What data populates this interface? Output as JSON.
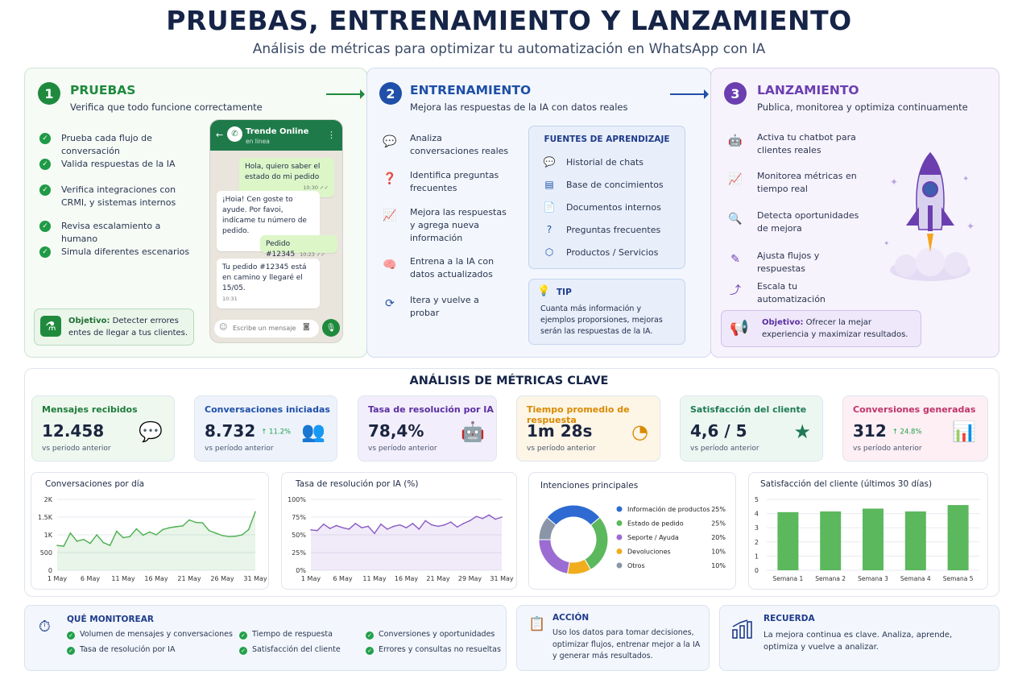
{
  "header": {
    "title": "PRUEBAS, ENTRENAMIENTO Y LANZAMIENTO",
    "subtitle": "Análisis de métricas para optimizar tu automatización en WhatsApp con IA"
  },
  "colors": {
    "green": "#1f8a3d",
    "blue": "#1f4fa8",
    "purple": "#6b3fb0"
  },
  "pruebas": {
    "number": "1",
    "title": "PRUEBAS",
    "subtitle": "Verifica que todo funcione correctamente",
    "items": [
      "Prueba cada flujo de conversación",
      "Valida respuestas de la IA",
      "Verifica integraciones con CRMI, y sistemas internos",
      "Revisa escalamiento a humano",
      "Simula diferentes escenarios"
    ],
    "objective_label": "Objetivo:",
    "objective_text": "Detecter errores entes de llegar a tus clientes."
  },
  "phone": {
    "name": "Trende Online",
    "status": "en linea",
    "messages": [
      {
        "text": "Hola, quiero saber el estado do mi pedido",
        "time": "10:30 ✓✓",
        "me": true
      },
      {
        "text": "¡Hoia! Cen goste to ayude. Por favoi, indícame tu número de pedido.",
        "time": "10:36",
        "me": false
      },
      {
        "text": "Pedido #12345",
        "time": "10:23 ✓✓",
        "me": true
      },
      {
        "text": "Tu pedido #12345 está en camino y llegaré el 15/05.",
        "time": "10:31",
        "me": false
      }
    ],
    "input_placeholder": "Escribe un mensaje"
  },
  "entrenamiento": {
    "number": "2",
    "title": "ENTRENAMIENTO",
    "subtitle": "Mejora las respuestas de la IA con datos reales",
    "items": [
      "Analiza conversaciones reales",
      "Identifica preguntas frecuentes",
      "Mejora las respuestas y agrega nueva información",
      "Entrena a la IA con datos actualizados",
      "Itera y vuelve a probar"
    ],
    "sources_title": "FUENTES DE APRENDIZAJE",
    "sources": [
      "Historial de chats",
      "Base de concimientos",
      "Documentos internos",
      "Preguntas frecuentes",
      "Productos / Servicios"
    ],
    "tip_title": "TIP",
    "tip_text": "Cuanta más información y ejemplos proporsiones, mejoras serán las respuestas de la IA."
  },
  "lanzamiento": {
    "number": "3",
    "title": "LANZAMIENTO",
    "subtitle": "Publica, monitorea y optimiza continuamente",
    "items": [
      "Activa tu chatbot para clientes reales",
      "Monitorea métricas en tiempo real",
      "Detecta oportunidades de mejora",
      "Ajusta flujos y respuestas",
      "Escala tu automatización"
    ],
    "objective_label": "Objetivo:",
    "objective_text": "Ofrecer la mejar experiencia y maximizar resultados."
  },
  "metrics_title": "ANÁLISIS DE MÉTRICAS CLAVE",
  "kpis": [
    {
      "title": "Mensajes recibidos",
      "value": "12.458",
      "delta": "",
      "sub": "vs periodo anterior",
      "color": "#1f7a3a",
      "bg": "#eef8ef"
    },
    {
      "title": "Conversaciones iniciadas",
      "value": "8.732",
      "delta": "↑ 11.2%",
      "sub": "vs período anterior",
      "color": "#1f4fa8",
      "bg": "#eef3fb"
    },
    {
      "title": "Tasa de resolución por IA",
      "value": "78,4%",
      "delta": "",
      "sub": "vs período anterior",
      "color": "#5a2fa0",
      "bg": "#f3eefb"
    },
    {
      "title": "Tiempo promedio de respuesta",
      "value": "1m 28s",
      "delta": "",
      "sub": "vs período anterior",
      "color": "#d98a00",
      "bg": "#fdf5e6"
    },
    {
      "title": "Satisfacción del cliente",
      "value": "4,6 / 5",
      "delta": "",
      "sub": "vs período anterior",
      "color": "#1f7a55",
      "bg": "#edf7f2"
    },
    {
      "title": "Conversiones generadas",
      "value": "312",
      "delta": "↑ 24.8%",
      "sub": "vs período anterior",
      "color": "#c0336a",
      "bg": "#fdeff4"
    }
  ],
  "chart_data": [
    {
      "type": "area",
      "title": "Conversaciones por día",
      "x": [
        "1 May",
        "2 May",
        "3 May",
        "4 May",
        "5 May",
        "6 May",
        "7 May",
        "8 May",
        "9 May",
        "10 May",
        "11 May",
        "12 May",
        "13 May",
        "14 May",
        "15 May",
        "16 May",
        "17 May",
        "18 May",
        "19 May",
        "20 May",
        "21 May",
        "22 May",
        "23 May",
        "24 May",
        "25 May",
        "26 May",
        "27 May",
        "28 May",
        "29 May",
        "30 May",
        "31 May"
      ],
      "values": [
        700,
        680,
        1050,
        820,
        870,
        760,
        1000,
        780,
        700,
        1100,
        920,
        950,
        1170,
        990,
        1080,
        1000,
        1150,
        1200,
        1230,
        1250,
        1420,
        1350,
        1340,
        1120,
        1050,
        980,
        950,
        960,
        1000,
        1150,
        1650
      ],
      "xticks": [
        "1 May",
        "6 May",
        "11 May",
        "16 May",
        "21 May",
        "26 May",
        "31 May"
      ],
      "yticks": [
        "0",
        "500",
        "1K",
        "1.5K",
        "2K"
      ],
      "ylim": [
        0,
        2000
      ]
    },
    {
      "type": "area",
      "title": "Tasa de resolución por IA (%)",
      "x": [
        "1 May",
        "2 May",
        "3 May",
        "4 May",
        "5 May",
        "6 May",
        "7 May",
        "8 May",
        "9 May",
        "10 May",
        "11 May",
        "12 May",
        "13 May",
        "14 May",
        "15 May",
        "16 May",
        "17 May",
        "18 May",
        "19 May",
        "20 May",
        "21 May",
        "22 May",
        "23 May",
        "24 May",
        "25 May",
        "26 May",
        "27 May",
        "28 May",
        "29 May",
        "30 May",
        "31 May"
      ],
      "values": [
        57,
        56,
        65,
        59,
        63,
        60,
        58,
        66,
        60,
        62,
        52,
        65,
        58,
        62,
        64,
        60,
        66,
        58,
        70,
        64,
        62,
        64,
        68,
        61,
        66,
        70,
        76,
        73,
        78,
        72,
        75
      ],
      "xticks": [
        "1 May",
        "6 May",
        "11 May",
        "16 May",
        "21 May",
        "29 May",
        "31 May"
      ],
      "yticks": [
        "0%",
        "25%",
        "50%",
        "75%",
        "100%"
      ],
      "ylim": [
        0,
        100
      ]
    },
    {
      "type": "pie",
      "title": "Intenciones principales",
      "categories": [
        "Información de productos",
        "Estado de pedido",
        "Seporte / Ayuda",
        "Devoluciones",
        "Otros"
      ],
      "values": [
        25,
        25,
        20,
        10,
        10
      ],
      "labels": [
        "25%",
        "25%",
        "20%",
        "10%",
        "10%"
      ],
      "colors": [
        "#2e6ad1",
        "#5cb85c",
        "#9b6cd1",
        "#f0ad1e",
        "#8a96a8"
      ]
    },
    {
      "type": "bar",
      "title": "Satisfacción del cliente (últimos 30 días)",
      "categories": [
        "Semana 1",
        "Semana 2",
        "Semana 3",
        "Semana 4",
        "Semana 5"
      ],
      "values": [
        4.1,
        4.15,
        4.35,
        4.15,
        4.6
      ],
      "yticks": [
        "0",
        "1",
        "2",
        "3",
        "4",
        "5"
      ],
      "ylim": [
        0,
        5
      ]
    }
  ],
  "monitor": {
    "title": "QUÉ MONITOREAR",
    "items": [
      "Volumen de mensajes y conversaciones",
      "Tasa de resolución por IA",
      "Tiempo de respuesta",
      "Satisfacción del cliente",
      "Conversiones y oportunidades",
      "Errores y consultas no resueltas"
    ]
  },
  "accion": {
    "title": "ACCIÓN",
    "text": "Uso los datos para tomar decisiones, optimizar flujos, entrenar mejor a la IA y generar más resultados."
  },
  "recuerda": {
    "title": "RECUERDA",
    "text": "La mejora continua es clave. Analiza, aprende, optimiza y vuelve a analizar."
  }
}
